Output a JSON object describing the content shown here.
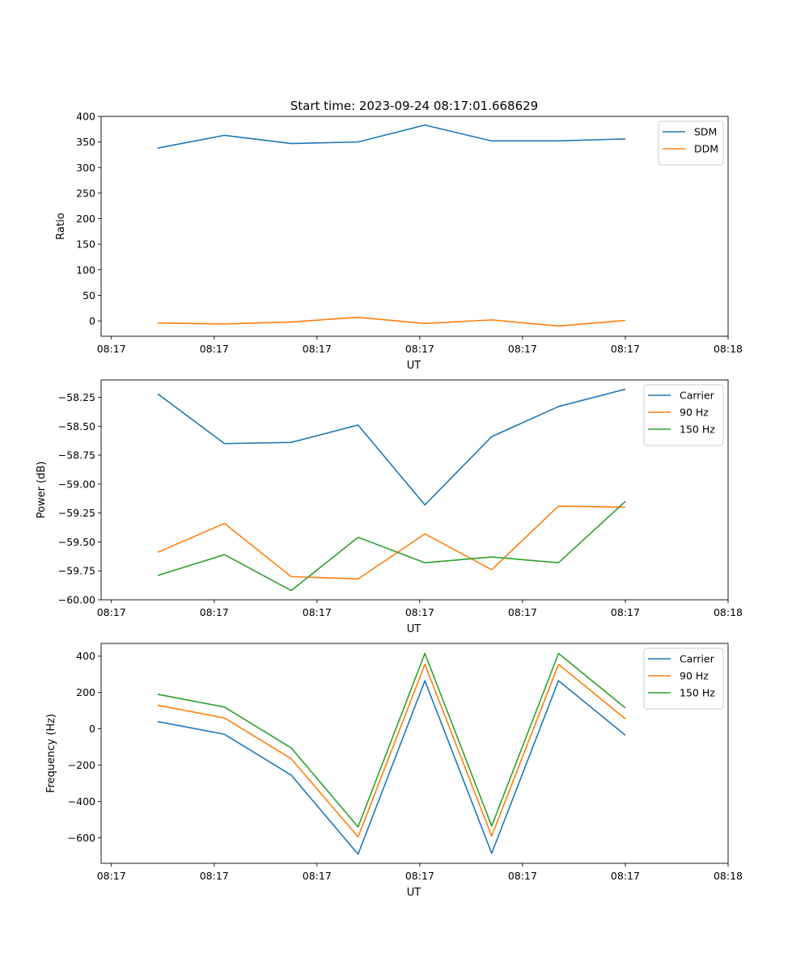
{
  "figure_title": "Start time: 2023-09-24 08:17:01.668629",
  "colors": {
    "c0": "#1f77b4",
    "c1": "#ff7f0e",
    "c2": "#2ca02c"
  },
  "chart_data": [
    {
      "type": "line",
      "title": "Start time: 2023-09-24 08:17:01.668629",
      "xlabel": "UT",
      "ylabel": "Ratio",
      "xlim": [
        -0.55,
        5.55
      ],
      "ylim": [
        -30,
        400
      ],
      "xticks": [
        -0.45,
        0.55,
        1.55,
        2.55,
        3.55,
        4.55,
        5.55
      ],
      "xtick_labels": [
        "08:17",
        "08:17",
        "08:17",
        "08:17",
        "08:17",
        "08:17",
        "08:18"
      ],
      "yticks": [
        0,
        50,
        100,
        150,
        200,
        250,
        300,
        350,
        400
      ],
      "ytick_labels": [
        "0",
        "50",
        "100",
        "150",
        "200",
        "250",
        "300",
        "350",
        "400"
      ],
      "x": [
        0,
        0.65,
        1.3,
        1.95,
        2.6,
        3.25,
        3.9,
        4.55
      ],
      "legend": "top-right",
      "series": [
        {
          "name": "SDM",
          "color": "#1f77b4",
          "values": [
            338,
            363,
            347,
            350,
            383,
            352,
            352,
            356
          ]
        },
        {
          "name": "DDM",
          "color": "#ff7f0e",
          "values": [
            -4,
            -6,
            -2,
            7,
            -5,
            2,
            -10,
            1
          ]
        }
      ]
    },
    {
      "type": "line",
      "xlabel": "UT",
      "ylabel": "Power (dB)",
      "xlim": [
        -0.55,
        5.55
      ],
      "ylim": [
        -60.0,
        -58.1
      ],
      "xticks": [
        -0.45,
        0.55,
        1.55,
        2.55,
        3.55,
        4.55,
        5.55
      ],
      "xtick_labels": [
        "08:17",
        "08:17",
        "08:17",
        "08:17",
        "08:17",
        "08:17",
        "08:18"
      ],
      "yticks": [
        -58.25,
        -58.5,
        -58.75,
        -59.0,
        -59.25,
        -59.5,
        -59.75,
        -60.0
      ],
      "ytick_labels": [
        "−58.25",
        "−58.50",
        "−58.75",
        "−59.00",
        "−59.25",
        "−59.50",
        "−59.75",
        "−60.00"
      ],
      "x": [
        0,
        0.65,
        1.3,
        1.95,
        2.6,
        3.25,
        3.9,
        4.55
      ],
      "legend": "top-right",
      "series": [
        {
          "name": "Carrier",
          "color": "#1f77b4",
          "values": [
            -58.22,
            -58.65,
            -58.64,
            -58.49,
            -59.18,
            -58.59,
            -58.33,
            -58.18
          ]
        },
        {
          "name": "90 Hz",
          "color": "#ff7f0e",
          "values": [
            -59.59,
            -59.34,
            -59.8,
            -59.82,
            -59.43,
            -59.74,
            -59.19,
            -59.2
          ]
        },
        {
          "name": "150 Hz",
          "color": "#2ca02c",
          "values": [
            -59.79,
            -59.61,
            -59.92,
            -59.46,
            -59.68,
            -59.63,
            -59.68,
            -59.15
          ]
        }
      ]
    },
    {
      "type": "line",
      "xlabel": "UT",
      "ylabel": "Frequency (Hz)",
      "xlim": [
        -0.55,
        5.55
      ],
      "ylim": [
        -740,
        470
      ],
      "xticks": [
        -0.45,
        0.55,
        1.55,
        2.55,
        3.55,
        4.55,
        5.55
      ],
      "xtick_labels": [
        "08:17",
        "08:17",
        "08:17",
        "08:17",
        "08:17",
        "08:17",
        "08:18"
      ],
      "yticks": [
        400,
        200,
        0,
        -200,
        -400,
        -600
      ],
      "ytick_labels": [
        "400",
        "200",
        "0",
        "−200",
        "−400",
        "−600"
      ],
      "x": [
        0,
        0.65,
        1.3,
        1.95,
        2.6,
        3.25,
        3.9,
        4.55
      ],
      "legend": "top-right",
      "series": [
        {
          "name": "Carrier",
          "color": "#1f77b4",
          "values": [
            40,
            -30,
            -255,
            -690,
            265,
            -685,
            265,
            -35
          ]
        },
        {
          "name": "90 Hz",
          "color": "#ff7f0e",
          "values": [
            130,
            60,
            -165,
            -595,
            355,
            -590,
            355,
            55
          ]
        },
        {
          "name": "150 Hz",
          "color": "#2ca02c",
          "values": [
            190,
            120,
            -105,
            -540,
            415,
            -535,
            415,
            115
          ]
        }
      ]
    }
  ]
}
